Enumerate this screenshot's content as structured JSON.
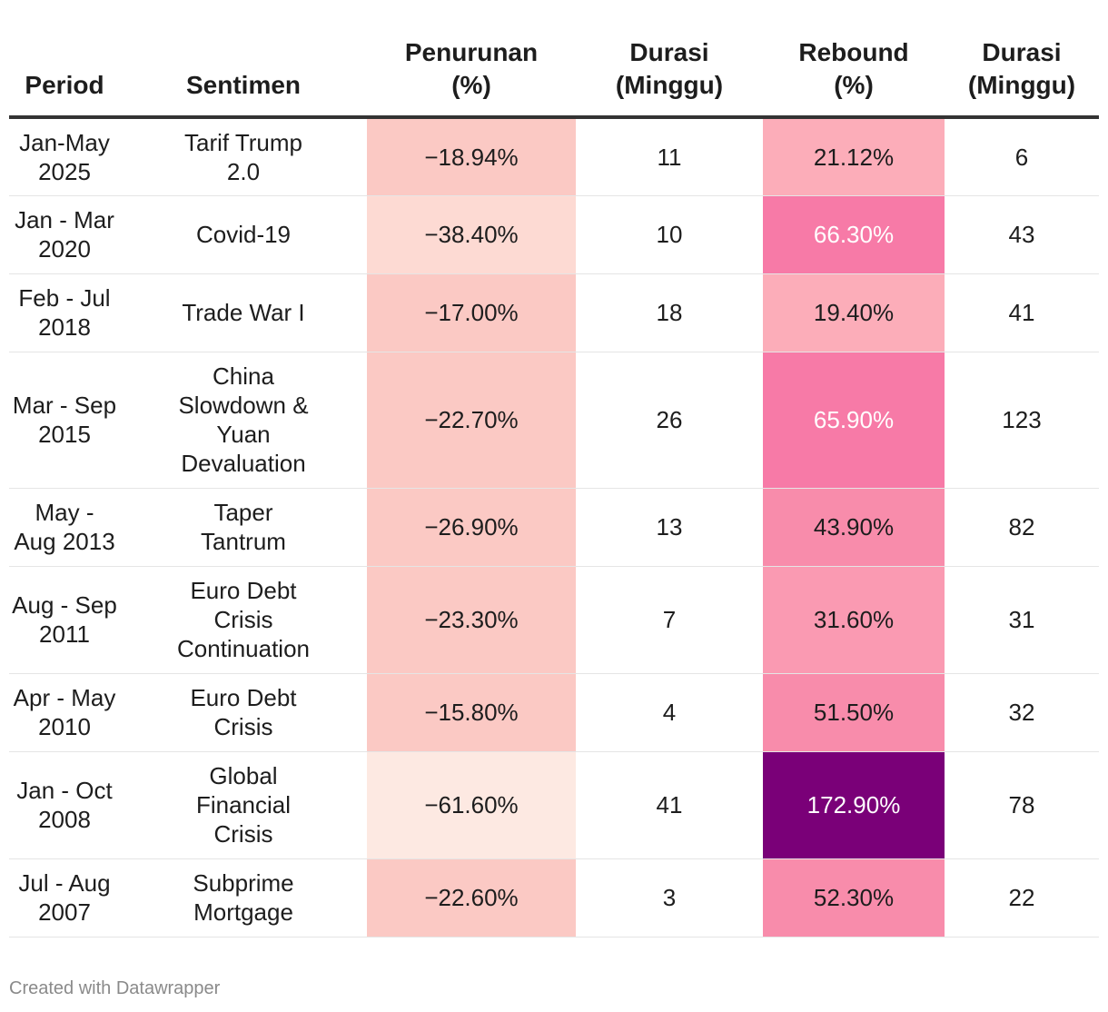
{
  "table": {
    "headers": [
      {
        "line1": "Period",
        "line2": ""
      },
      {
        "line1": "Sentimen",
        "line2": ""
      },
      {
        "line1": "Penurunan",
        "line2": "(%)"
      },
      {
        "line1": "Durasi",
        "line2": "(Minggu)"
      },
      {
        "line1": "Rebound",
        "line2": "(%)"
      },
      {
        "line1": "Durasi",
        "line2": "(Minggu)"
      }
    ],
    "rows": [
      {
        "period": [
          "Jan-May",
          "2025"
        ],
        "sentimen": [
          "Tarif Trump",
          "2.0"
        ],
        "penurunan": "−18.94%",
        "penurunan_value": -18.94,
        "durasi1": "11",
        "rebound": "21.12%",
        "rebound_value": 21.12,
        "durasi2": "6"
      },
      {
        "period": [
          "Jan - Mar",
          "2020"
        ],
        "sentimen": [
          "Covid-19"
        ],
        "penurunan": "−38.40%",
        "penurunan_value": -38.4,
        "durasi1": "10",
        "rebound": "66.30%",
        "rebound_value": 66.3,
        "durasi2": "43"
      },
      {
        "period": [
          "Feb - Jul",
          "2018"
        ],
        "sentimen": [
          "Trade War I"
        ],
        "penurunan": "−17.00%",
        "penurunan_value": -17.0,
        "durasi1": "18",
        "rebound": "19.40%",
        "rebound_value": 19.4,
        "durasi2": "41"
      },
      {
        "period": [
          "Mar - Sep",
          "2015"
        ],
        "sentimen": [
          "China",
          "Slowdown &",
          "Yuan",
          "Devaluation"
        ],
        "penurunan": "−22.70%",
        "penurunan_value": -22.7,
        "durasi1": "26",
        "rebound": "65.90%",
        "rebound_value": 65.9,
        "durasi2": "123"
      },
      {
        "period": [
          "May -",
          "Aug 2013"
        ],
        "sentimen": [
          "Taper",
          "Tantrum"
        ],
        "penurunan": "−26.90%",
        "penurunan_value": -26.9,
        "durasi1": "13",
        "rebound": "43.90%",
        "rebound_value": 43.9,
        "durasi2": "82"
      },
      {
        "period": [
          "Aug - Sep",
          "2011"
        ],
        "sentimen": [
          "Euro Debt",
          "Crisis",
          "Continuation"
        ],
        "penurunan": "−23.30%",
        "penurunan_value": -23.3,
        "durasi1": "7",
        "rebound": "31.60%",
        "rebound_value": 31.6,
        "durasi2": "31"
      },
      {
        "period": [
          "Apr - May",
          "2010"
        ],
        "sentimen": [
          "Euro Debt",
          "Crisis"
        ],
        "penurunan": "−15.80%",
        "penurunan_value": -15.8,
        "durasi1": "4",
        "rebound": "51.50%",
        "rebound_value": 51.5,
        "durasi2": "32"
      },
      {
        "period": [
          "Jan - Oct",
          "2008"
        ],
        "sentimen": [
          "Global",
          "Financial",
          "Crisis"
        ],
        "penurunan": "−61.60%",
        "penurunan_value": -61.6,
        "durasi1": "41",
        "rebound": "172.90%",
        "rebound_value": 172.9,
        "durasi2": "78"
      },
      {
        "period": [
          "Jul - Aug",
          "2007"
        ],
        "sentimen": [
          "Subprime",
          "Mortgage"
        ],
        "penurunan": "−22.60%",
        "penurunan_value": -22.6,
        "durasi1": "3",
        "rebound": "52.30%",
        "rebound_value": 52.3,
        "durasi2": "22"
      }
    ]
  },
  "colors": {
    "penurunan_scale": [
      "#fde9e2",
      "#fddad3",
      "#fbc9c4"
    ],
    "rebound_scale": [
      "#fcadb9",
      "#fa9ab2",
      "#f88cab",
      "#f77aa7",
      "#7a0078"
    ],
    "rebound_text_light": "#ffffff",
    "text": "#1d1d1d"
  },
  "chart_data": {
    "type": "table",
    "columns": [
      "Period",
      "Sentimen",
      "Penurunan (%)",
      "Durasi (Minggu)",
      "Rebound (%)",
      "Durasi (Minggu)"
    ],
    "rows": [
      [
        "Jan-May 2025",
        "Tarif Trump 2.0",
        -18.94,
        11,
        21.12,
        6
      ],
      [
        "Jan - Mar 2020",
        "Covid-19",
        -38.4,
        10,
        66.3,
        43
      ],
      [
        "Feb - Jul 2018",
        "Trade War I",
        -17.0,
        18,
        19.4,
        41
      ],
      [
        "Mar - Sep 2015",
        "China Slowdown & Yuan Devaluation",
        -22.7,
        26,
        65.9,
        123
      ],
      [
        "May - Aug 2013",
        "Taper Tantrum",
        -26.9,
        13,
        43.9,
        82
      ],
      [
        "Aug - Sep 2011",
        "Euro Debt Crisis Continuation",
        -23.3,
        7,
        31.6,
        31
      ],
      [
        "Apr - May 2010",
        "Euro Debt Crisis",
        -15.8,
        4,
        51.5,
        32
      ],
      [
        "Jan - Oct 2008",
        "Global Financial Crisis",
        -61.6,
        41,
        172.9,
        78
      ],
      [
        "Jul - Aug 2007",
        "Subprime Mortgage",
        -22.6,
        3,
        52.3,
        22
      ]
    ]
  },
  "footer": "Created with Datawrapper"
}
